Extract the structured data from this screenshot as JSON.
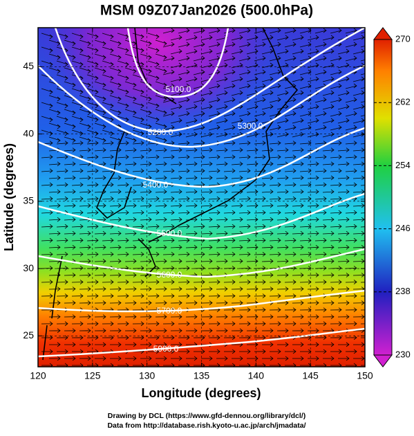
{
  "title": "MSM 09Z07Jan2026 (500.0hPa)",
  "x_axis": {
    "label": "Longitude (degrees)",
    "lim": [
      120,
      150
    ],
    "ticks": [
      120,
      125,
      130,
      135,
      140,
      145,
      150
    ]
  },
  "y_axis": {
    "label": "Latitude  (degrees)",
    "lim": [
      22.7,
      47.9
    ],
    "ticks": [
      25,
      30,
      35,
      40,
      45
    ]
  },
  "colorbar": {
    "lim": [
      230,
      270
    ],
    "ticks": [
      230,
      238,
      246,
      254,
      262,
      270
    ]
  },
  "contours": [
    {
      "label": "5100.0"
    },
    {
      "label": "5200.0"
    },
    {
      "label": "5300.0"
    },
    {
      "label": "5400.0"
    },
    {
      "label": "5500.0"
    },
    {
      "label": "5600.0"
    },
    {
      "label": "5700.0"
    },
    {
      "label": "5900.0"
    }
  ],
  "footer": [
    "Drawing by DCL (https://www.gfd-dennou.org/library/dcl/)",
    "Data from http://database.rish.kyoto-u.ac.jp/arch/jmadata/"
  ]
}
